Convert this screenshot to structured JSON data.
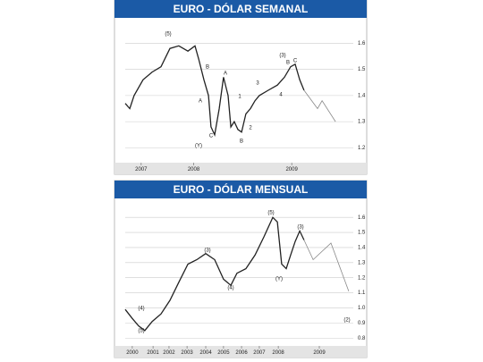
{
  "chart_data": [
    {
      "type": "line",
      "title": "EURO - DÓLAR SEMANAL",
      "xlim": [
        0,
        100
      ],
      "ylim": [
        1.15,
        1.68
      ],
      "xticks": [
        {
          "value": 7,
          "label": "2007"
        },
        {
          "value": 30,
          "label": "2008"
        },
        {
          "value": 73,
          "label": "2009"
        }
      ],
      "yticks": [
        1.6,
        1.5,
        1.4,
        1.3,
        1.2
      ],
      "grid": true,
      "series": [
        {
          "color": "#222222",
          "x": [
            0,
            2,
            3.9,
            7.8,
            11.8,
            15.7,
            19.6,
            23.5,
            27.5,
            30.6,
            32.2,
            34.5,
            36.5,
            37.6,
            39.2,
            41.2,
            43.1,
            45.1,
            46.3,
            47.8,
            49.4,
            51,
            52.9,
            54.9,
            56.9,
            58.8,
            62.7,
            66.7,
            69.8,
            72.5,
            74.5,
            76.5,
            78.4
          ],
          "values": [
            1.37,
            1.35,
            1.4,
            1.46,
            1.49,
            1.51,
            1.58,
            1.59,
            1.57,
            1.59,
            1.54,
            1.46,
            1.4,
            1.28,
            1.25,
            1.35,
            1.47,
            1.4,
            1.28,
            1.3,
            1.27,
            1.26,
            1.33,
            1.35,
            1.38,
            1.4,
            1.42,
            1.44,
            1.47,
            1.51,
            1.52,
            1.46,
            1.42
          ]
        },
        {
          "color": "#888888",
          "x": [
            78.4,
            84.3,
            86.3,
            92.2
          ],
          "values": [
            1.42,
            1.35,
            1.38,
            1.3
          ]
        }
      ],
      "annotations": [
        "(5)",
        "B",
        "A",
        "A",
        "C",
        "(Y)",
        "B",
        "1",
        "2",
        "3",
        "4",
        "(3)",
        "B",
        "C"
      ]
    },
    {
      "type": "line",
      "title": "EURO - DÓLAR MENSUAL",
      "xlim": [
        0,
        100
      ],
      "ylim": [
        0.76,
        1.69
      ],
      "xticks": [
        {
          "value": 3.1,
          "label": "2000"
        },
        {
          "value": 12.2,
          "label": "2001"
        },
        {
          "value": 19.2,
          "label": "2002"
        },
        {
          "value": 27.1,
          "label": "2003"
        },
        {
          "value": 35.3,
          "label": "2004"
        },
        {
          "value": 43.1,
          "label": "2005"
        },
        {
          "value": 51,
          "label": "2006"
        },
        {
          "value": 58.8,
          "label": "2007"
        },
        {
          "value": 67.1,
          "label": "2008"
        },
        {
          "value": 85.1,
          "label": "2009"
        }
      ],
      "yticks": [
        1.6,
        1.5,
        1.4,
        1.3,
        1.2,
        1.1,
        {
          "value": 1,
          "label": "1.0"
        },
        0.9,
        0.8
      ],
      "grid": true,
      "series": [
        {
          "color": "#222222",
          "x": [
            0,
            3.1,
            5.9,
            8.6,
            11.8,
            15.7,
            19.6,
            23.5,
            27.5,
            31.4,
            35.3,
            39.2,
            43.1,
            46.3,
            49,
            52.9,
            56.9,
            60.8,
            64.7,
            66.7,
            68.6,
            70.6,
            72.5,
            74.5,
            76.5,
            78.4
          ],
          "values": [
            0.99,
            0.93,
            0.88,
            0.85,
            0.91,
            0.96,
            1.05,
            1.17,
            1.29,
            1.32,
            1.36,
            1.32,
            1.19,
            1.15,
            1.23,
            1.26,
            1.35,
            1.47,
            1.6,
            1.57,
            1.29,
            1.26,
            1.35,
            1.44,
            1.51,
            1.45
          ]
        },
        {
          "color": "#888888",
          "x": [
            78.4,
            82.4,
            90.2,
            98
          ],
          "values": [
            1.45,
            1.32,
            1.43,
            1.11
          ]
        }
      ],
      "annotations": [
        "(5)",
        "(3)",
        "(4)",
        "(Y)",
        "(3)",
        "(2)",
        "(4)",
        "(5)"
      ]
    }
  ]
}
